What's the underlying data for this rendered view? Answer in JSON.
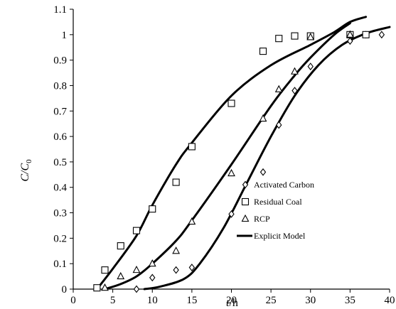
{
  "chart_data": {
    "type": "scatter",
    "xlabel_var": "t",
    "xlabel_unit": "/h",
    "ylabel_main": "C/C",
    "ylabel_sub": "0",
    "xlim": [
      0,
      40
    ],
    "ylim": [
      0,
      1.1
    ],
    "x_ticks": [
      0,
      5,
      10,
      15,
      20,
      25,
      30,
      35,
      40
    ],
    "y_ticks": [
      "0",
      "0.1",
      "0.2",
      "0.3",
      "0.4",
      "0.5",
      "0.6",
      "0.7",
      "0.8",
      "0.9",
      "1",
      "1.1"
    ],
    "grid": false,
    "legend_position": "lower-right",
    "colors": {
      "axis": "#000000",
      "marker": "#000000",
      "model_line": "#000000"
    },
    "series": [
      {
        "name": "Activated Carbon",
        "marker": "diamond",
        "points": [
          [
            8,
            0.0
          ],
          [
            10,
            0.045
          ],
          [
            13,
            0.075
          ],
          [
            15,
            0.085
          ],
          [
            20,
            0.295
          ],
          [
            24,
            0.46
          ],
          [
            26,
            0.645
          ],
          [
            28,
            0.78
          ],
          [
            30,
            0.875
          ],
          [
            35,
            0.975
          ],
          [
            37,
            1.0
          ],
          [
            39,
            1.0
          ]
        ]
      },
      {
        "name": "Residual Coal",
        "marker": "square",
        "points": [
          [
            3,
            0.005
          ],
          [
            4,
            0.075
          ],
          [
            6,
            0.17
          ],
          [
            8,
            0.23
          ],
          [
            10,
            0.315
          ],
          [
            13,
            0.42
          ],
          [
            15,
            0.56
          ],
          [
            20,
            0.73
          ],
          [
            24,
            0.935
          ],
          [
            26,
            0.985
          ],
          [
            28,
            0.995
          ],
          [
            30,
            0.995
          ],
          [
            35,
            1.0
          ],
          [
            37,
            1.0
          ]
        ]
      },
      {
        "name": "RCP",
        "marker": "triangle",
        "points": [
          [
            4,
            0.005
          ],
          [
            6,
            0.05
          ],
          [
            8,
            0.075
          ],
          [
            10,
            0.1
          ],
          [
            13,
            0.15
          ],
          [
            15,
            0.265
          ],
          [
            20,
            0.455
          ],
          [
            24,
            0.67
          ],
          [
            26,
            0.785
          ],
          [
            28,
            0.855
          ],
          [
            30,
            0.99
          ],
          [
            35,
            1.0
          ]
        ]
      }
    ],
    "model_curves": [
      {
        "name": "Explicit Model",
        "label_in_legend": true,
        "points": [
          [
            3,
            0.0
          ],
          [
            5,
            0.08
          ],
          [
            8,
            0.21
          ],
          [
            10,
            0.33
          ],
          [
            13,
            0.49
          ],
          [
            15,
            0.575
          ],
          [
            20,
            0.76
          ],
          [
            25,
            0.88
          ],
          [
            30,
            0.96
          ],
          [
            33,
            1.01
          ],
          [
            35,
            1.05
          ],
          [
            37,
            1.07
          ]
        ]
      },
      {
        "name": "Explicit Model",
        "label_in_legend": false,
        "points": [
          [
            4,
            0.0
          ],
          [
            6,
            0.02
          ],
          [
            8,
            0.05
          ],
          [
            10,
            0.1
          ],
          [
            13,
            0.19
          ],
          [
            15,
            0.27
          ],
          [
            20,
            0.49
          ],
          [
            25,
            0.72
          ],
          [
            28,
            0.84
          ],
          [
            30,
            0.91
          ],
          [
            33,
            1.0
          ],
          [
            35,
            1.045
          ]
        ]
      },
      {
        "name": "Explicit Model",
        "label_in_legend": false,
        "points": [
          [
            9,
            0.0
          ],
          [
            11,
            0.01
          ],
          [
            14,
            0.04
          ],
          [
            16,
            0.1
          ],
          [
            19,
            0.24
          ],
          [
            22,
            0.42
          ],
          [
            25,
            0.6
          ],
          [
            28,
            0.76
          ],
          [
            31,
            0.88
          ],
          [
            34,
            0.96
          ],
          [
            37,
            1.005
          ],
          [
            40,
            1.03
          ]
        ]
      }
    ],
    "legend": [
      {
        "marker": "diamond",
        "label": "Activated Carbon"
      },
      {
        "marker": "square",
        "label": "Residual Coal"
      },
      {
        "marker": "triangle",
        "label": "RCP"
      },
      {
        "marker": "line",
        "label": "Explicit Model"
      }
    ]
  }
}
